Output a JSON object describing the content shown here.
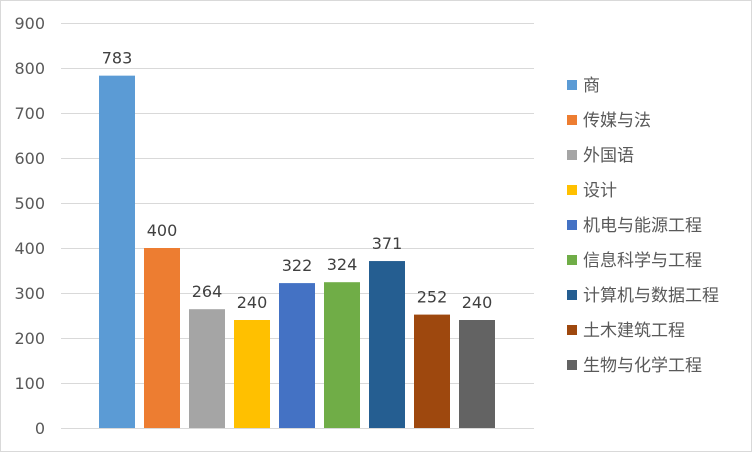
{
  "chart_data": {
    "type": "bar",
    "categories": [
      "商",
      "传媒与法",
      "外国语",
      "设计",
      "机电与能源工程",
      "信息科学与工程",
      "计算机与数据工程",
      "土木建筑工程",
      "生物与化学工程"
    ],
    "values": [
      783,
      400,
      264,
      240,
      322,
      324,
      371,
      252,
      240
    ],
    "colors": [
      "#5b9bd5",
      "#ed7d31",
      "#a5a5a5",
      "#ffc000",
      "#4472c4",
      "#70ad47",
      "#255e91",
      "#9e480e",
      "#636363"
    ],
    "ylim": [
      0,
      900
    ],
    "yticks": [
      0,
      100,
      200,
      300,
      400,
      500,
      600,
      700,
      800,
      900
    ],
    "grid": true,
    "legend_position": "right",
    "show_data_labels": true
  }
}
